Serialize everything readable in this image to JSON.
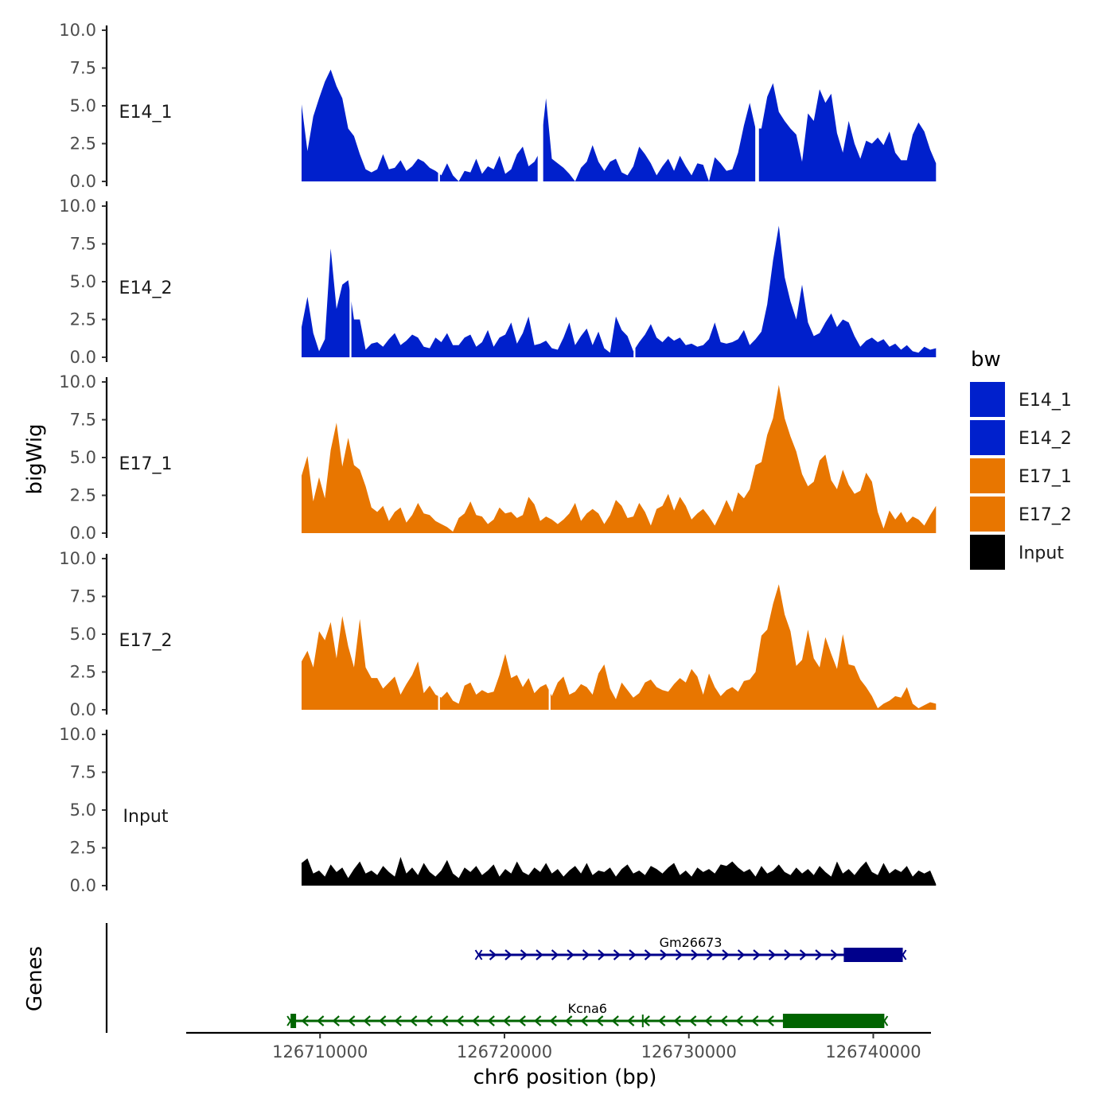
{
  "chart_data": {
    "type": "area",
    "title": "",
    "xlabel": "chr6 position (bp)",
    "ylabel": "bigWig",
    "gene_track_label": "Genes",
    "xlim": [
      126703000,
      126743000
    ],
    "x_ticks": [
      126710000,
      126720000,
      126730000,
      126740000
    ],
    "x_tick_labels": [
      "126710000",
      "126720000",
      "126730000",
      "126740000"
    ],
    "ylim": [
      0,
      10
    ],
    "y_ticks": [
      0,
      2.5,
      5,
      7.5,
      10
    ],
    "y_tick_labels": [
      "0.0",
      "2.5",
      "5.0",
      "7.5",
      "10.0"
    ],
    "legend": {
      "title": "bw",
      "position": "right",
      "entries": [
        {
          "label": "E14_1",
          "color": "#0020CC"
        },
        {
          "label": "E14_2",
          "color": "#0020CC"
        },
        {
          "label": "E17_1",
          "color": "#E87600"
        },
        {
          "label": "E17_2",
          "color": "#E87600"
        },
        {
          "label": "Input",
          "color": "#000000"
        }
      ]
    },
    "series": [
      {
        "name": "E14_1",
        "color": "#0020CC",
        "x_start": 126709000,
        "x_end": 126743400,
        "values": [
          5.1,
          2.0,
          4.3,
          5.5,
          6.6,
          7.4,
          6.3,
          5.5,
          3.5,
          3.0,
          1.8,
          0.8,
          0.6,
          0.8,
          1.8,
          0.8,
          0.9,
          1.4,
          0.7,
          1.0,
          1.5,
          1.3,
          0.9,
          0.7,
          0.4,
          1.2,
          0.4,
          0.0,
          0.7,
          0.6,
          1.5,
          0.5,
          1.0,
          0.8,
          1.7,
          0.5,
          0.8,
          1.8,
          2.3,
          1.0,
          1.3,
          2.0,
          5.5,
          1.5,
          1.2,
          0.9,
          0.5,
          0.0,
          0.9,
          1.3,
          2.4,
          1.3,
          0.7,
          1.3,
          1.5,
          0.6,
          0.4,
          1.0,
          2.3,
          1.8,
          1.2,
          0.4,
          1.0,
          1.5,
          0.7,
          1.7,
          1.0,
          0.4,
          1.2,
          1.1,
          0.0,
          1.6,
          1.2,
          0.7,
          0.8,
          1.9,
          3.7,
          5.2,
          3.5,
          3.5,
          5.6,
          6.5,
          4.6,
          4.0,
          3.5,
          3.1,
          1.3,
          4.5,
          4.0,
          6.1,
          5.2,
          5.8,
          3.2,
          1.9,
          4.0,
          2.5,
          1.5,
          2.7,
          2.5,
          2.9,
          2.4,
          3.3,
          1.9,
          1.4,
          1.4,
          3.1,
          3.9,
          3.3,
          2.1,
          1.2
        ],
        "gaps": [
          [
            126716400,
            126716500
          ],
          [
            126721800,
            126722100
          ],
          [
            126733600,
            126733800
          ]
        ]
      },
      {
        "name": "E14_2",
        "color": "#0020CC",
        "x_start": 126709000,
        "x_end": 126743400,
        "values": [
          2.0,
          4.0,
          1.6,
          0.4,
          1.2,
          7.2,
          3.2,
          4.8,
          5.1,
          2.5,
          2.5,
          0.5,
          0.9,
          1.0,
          0.7,
          1.2,
          1.6,
          0.8,
          1.1,
          1.5,
          1.3,
          0.7,
          0.6,
          1.3,
          1.0,
          1.6,
          0.8,
          0.8,
          1.3,
          1.5,
          0.7,
          1.0,
          1.8,
          0.7,
          1.3,
          1.5,
          2.3,
          0.9,
          1.6,
          2.7,
          0.8,
          0.9,
          1.1,
          0.6,
          0.5,
          1.3,
          2.3,
          0.8,
          1.4,
          1.9,
          0.8,
          1.7,
          0.6,
          0.3,
          2.7,
          1.8,
          1.4,
          0.4,
          1.0,
          1.5,
          2.2,
          1.3,
          1.0,
          1.4,
          1.1,
          1.3,
          0.8,
          0.9,
          0.7,
          0.8,
          1.2,
          2.3,
          1.0,
          0.9,
          1.0,
          1.2,
          1.8,
          0.8,
          1.2,
          1.7,
          3.5,
          6.4,
          8.7,
          5.3,
          3.7,
          2.5,
          4.8,
          2.3,
          1.4,
          1.6,
          2.3,
          2.9,
          2.0,
          2.5,
          2.3,
          1.4,
          0.7,
          1.1,
          1.3,
          1.0,
          1.2,
          0.7,
          0.9,
          0.5,
          0.8,
          0.4,
          0.3,
          0.7,
          0.5,
          0.6
        ],
        "gaps": [
          [
            126711600,
            126711700
          ],
          [
            126727000,
            126727100
          ]
        ]
      },
      {
        "name": "E17_1",
        "color": "#E87600",
        "x_start": 126709000,
        "x_end": 126743400,
        "values": [
          3.8,
          5.1,
          2.1,
          3.7,
          2.3,
          5.5,
          7.3,
          4.4,
          6.3,
          4.5,
          4.2,
          3.1,
          1.7,
          1.4,
          1.8,
          0.8,
          1.4,
          1.7,
          0.7,
          1.2,
          2.0,
          1.3,
          1.2,
          0.8,
          0.6,
          0.4,
          0.1,
          1.0,
          1.3,
          2.1,
          1.2,
          1.1,
          0.6,
          0.9,
          1.7,
          1.3,
          1.4,
          1.0,
          1.2,
          2.4,
          1.9,
          0.8,
          1.1,
          0.9,
          0.6,
          0.9,
          1.3,
          2.0,
          0.8,
          1.3,
          1.6,
          1.3,
          0.6,
          1.2,
          2.2,
          1.8,
          1.0,
          1.1,
          2.0,
          1.4,
          0.5,
          1.6,
          1.8,
          2.6,
          1.5,
          2.4,
          1.8,
          0.9,
          1.3,
          1.6,
          1.1,
          0.5,
          1.3,
          2.2,
          1.4,
          2.7,
          2.3,
          2.9,
          4.5,
          4.7,
          6.5,
          7.6,
          9.8,
          7.6,
          6.4,
          5.4,
          3.9,
          3.1,
          3.4,
          4.8,
          5.2,
          3.5,
          2.9,
          4.2,
          3.2,
          2.6,
          2.8,
          4.0,
          3.4,
          1.4,
          0.3,
          1.5,
          0.9,
          1.4,
          0.7,
          1.1,
          0.9,
          0.5,
          1.2,
          1.8
        ],
        "gaps": []
      },
      {
        "name": "E17_2",
        "color": "#E87600",
        "x_start": 126709000,
        "x_end": 126743400,
        "values": [
          3.2,
          3.9,
          2.8,
          5.2,
          4.6,
          5.8,
          3.4,
          6.2,
          4.2,
          2.8,
          6.0,
          2.8,
          2.1,
          2.1,
          1.4,
          1.8,
          2.2,
          1.0,
          1.7,
          2.3,
          3.2,
          1.1,
          1.6,
          1.0,
          0.8,
          1.2,
          0.6,
          0.4,
          1.6,
          1.8,
          1.0,
          1.3,
          1.1,
          1.2,
          2.3,
          3.7,
          2.1,
          2.3,
          1.5,
          2.1,
          1.1,
          1.5,
          1.7,
          0.9,
          1.8,
          2.2,
          1.0,
          1.2,
          1.7,
          1.5,
          1.0,
          2.4,
          3.0,
          1.4,
          0.7,
          1.8,
          1.3,
          0.8,
          1.1,
          1.8,
          2.0,
          1.5,
          1.3,
          1.2,
          1.7,
          2.1,
          1.8,
          2.7,
          2.2,
          1.0,
          2.4,
          1.5,
          0.9,
          1.3,
          1.5,
          1.2,
          1.9,
          2.0,
          2.5,
          4.9,
          5.3,
          7.0,
          8.3,
          6.3,
          5.2,
          2.9,
          3.3,
          5.3,
          3.4,
          2.8,
          4.8,
          3.7,
          2.7,
          5.0,
          3.0,
          2.9,
          2.0,
          1.5,
          0.9,
          0.1,
          0.4,
          0.6,
          0.9,
          0.8,
          1.5,
          0.4,
          0.1,
          0.3,
          0.5,
          0.4
        ],
        "gaps": [
          [
            126716400,
            126716500
          ],
          [
            126722400,
            126722500
          ]
        ]
      },
      {
        "name": "Input",
        "color": "#000000",
        "x_start": 126709000,
        "x_end": 126743400,
        "values": [
          1.5,
          1.8,
          0.8,
          1.0,
          0.6,
          1.4,
          0.9,
          1.2,
          0.5,
          1.1,
          1.6,
          0.8,
          1.0,
          0.7,
          1.3,
          0.9,
          0.6,
          1.9,
          0.8,
          1.2,
          0.7,
          1.5,
          0.9,
          0.6,
          1.0,
          1.7,
          0.8,
          0.5,
          1.2,
          0.9,
          1.3,
          0.7,
          1.0,
          1.4,
          0.6,
          1.1,
          0.8,
          1.6,
          0.9,
          0.7,
          1.2,
          0.9,
          1.5,
          0.8,
          1.1,
          0.6,
          1.0,
          1.3,
          0.8,
          1.5,
          0.7,
          1.0,
          0.9,
          1.2,
          0.6,
          1.1,
          1.4,
          0.8,
          1.0,
          0.7,
          1.3,
          1.1,
          0.8,
          1.2,
          1.5,
          0.7,
          1.0,
          0.6,
          1.2,
          0.9,
          1.1,
          0.8,
          1.4,
          1.3,
          1.6,
          1.2,
          0.9,
          1.1,
          0.6,
          1.3,
          0.8,
          1.0,
          1.4,
          0.9,
          0.7,
          1.2,
          0.8,
          1.1,
          0.7,
          1.3,
          0.9,
          0.6,
          1.6,
          0.8,
          1.1,
          0.7,
          1.2,
          1.6,
          0.9,
          0.7,
          1.5,
          0.8,
          1.1,
          0.9,
          1.3,
          0.6,
          1.0,
          0.8,
          1.0,
          0.1
        ],
        "gaps": []
      }
    ],
    "genes": [
      {
        "name": "Gm26673",
        "strand": "+",
        "start": 126718600,
        "end": 126741600,
        "thick_start": 126738400,
        "thick_end": 126741600,
        "color": "#00008B"
      },
      {
        "name": "Kcna6",
        "strand": "-",
        "start": 126708400,
        "end": 126740600,
        "thick_start": 126735100,
        "thick_end": 126740600,
        "color": "#006400",
        "extra_exon": [
          126708400,
          126708700
        ],
        "exon_mark": 126727500
      }
    ]
  }
}
